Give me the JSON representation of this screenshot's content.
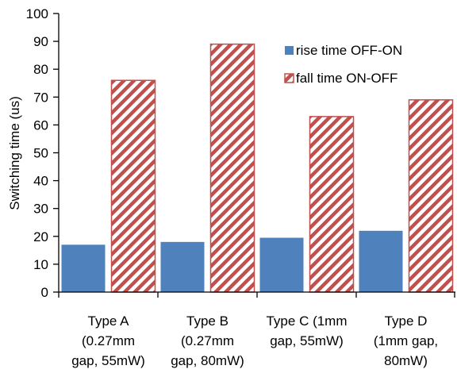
{
  "chart_data": {
    "type": "bar",
    "title": "",
    "xlabel": "",
    "ylabel": "Switching time (us)",
    "ylim": [
      0,
      100
    ],
    "yticks": [
      0,
      10,
      20,
      30,
      40,
      50,
      60,
      70,
      80,
      90,
      100
    ],
    "grid": false,
    "legend_position": "top-right",
    "categories": [
      [
        "Type A",
        "(0.27mm",
        "gap, 55mW)"
      ],
      [
        "Type B",
        "(0.27mm",
        "gap, 80mW)"
      ],
      [
        "Type C (1mm",
        "gap, 55mW)"
      ],
      [
        "Type D",
        "(1mm gap,",
        "80mW)"
      ]
    ],
    "series": [
      {
        "name": "rise time OFF-ON",
        "values": [
          17,
          18,
          19.5,
          22
        ],
        "color": "#4f81bd",
        "fill": "solid"
      },
      {
        "name": "fall time ON-OFF",
        "values": [
          76,
          89,
          63,
          69
        ],
        "color": "#c0504d",
        "fill": "hatched"
      }
    ]
  }
}
